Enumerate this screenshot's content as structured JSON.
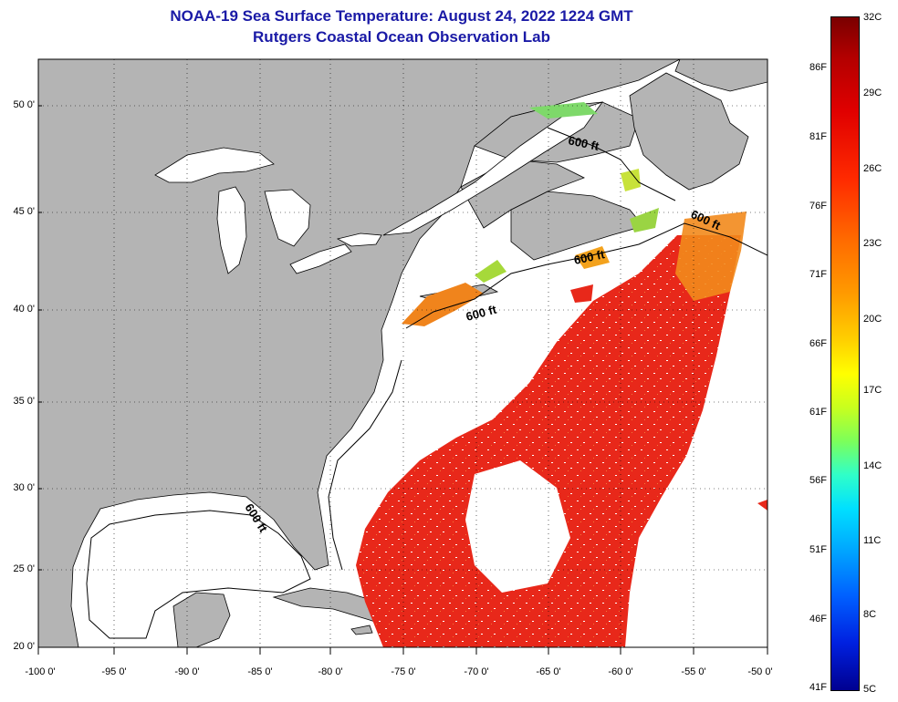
{
  "header": {
    "title": "NOAA-19 Sea Surface Temperature:  August 24, 2022 1224 GMT",
    "subtitle": "Rutgers Coastal Ocean Observation Lab"
  },
  "map": {
    "lat_labels": [
      "50 0'",
      "45 0'",
      "40 0'",
      "35 0'",
      "30 0'",
      "25 0'",
      "20 0'"
    ],
    "lon_labels": [
      "-100 0'",
      "-95 0'",
      "-90 0'",
      "-85 0'",
      "-80 0'",
      "-75 0'",
      "-70 0'",
      "-65 0'",
      "-60 0'",
      "-55 0'",
      "-50 0'"
    ],
    "isobath_labels": [
      "600 ft",
      "600 ft",
      "600 ft",
      "600 ft",
      "600 ft"
    ],
    "colors": {
      "land": "#b4b4b4",
      "no_data": "#ffffff",
      "warm": "#e8281a",
      "orange": "#f28a1c"
    }
  },
  "colorbar": {
    "fahrenheit": [
      "86F",
      "81F",
      "76F",
      "71F",
      "66F",
      "61F",
      "56F",
      "51F",
      "46F",
      "41F"
    ],
    "celsius": [
      "32C",
      "29C",
      "26C",
      "23C",
      "20C",
      "17C",
      "14C",
      "11C",
      "8C",
      "5C"
    ]
  }
}
